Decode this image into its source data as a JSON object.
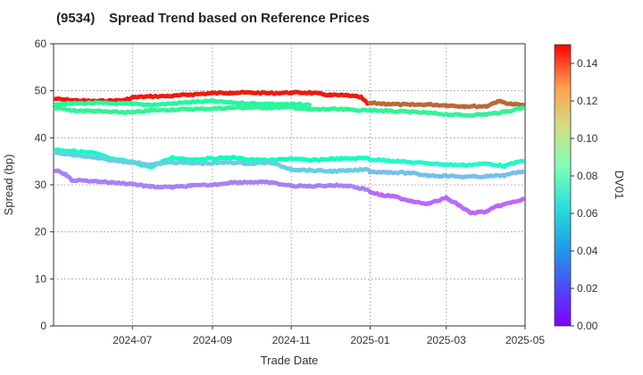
{
  "chart_data": {
    "type": "scatter",
    "title_code": "(9534)",
    "title": "Spread Trend based on Reference Prices",
    "xlabel": "Trade Date",
    "ylabel": "Spread (bp)",
    "colorbar_label": "DV01",
    "ylim": [
      0,
      60
    ],
    "yticks": [
      "0",
      "10",
      "20",
      "30",
      "40",
      "50",
      "60"
    ],
    "xlim": [
      "2024-05-01",
      "2025-05-01"
    ],
    "xticks": [
      {
        "date": "2024-07-01",
        "label": "2024-07"
      },
      {
        "date": "2024-09-01",
        "label": "2024-09"
      },
      {
        "date": "2024-11-01",
        "label": "2024-11"
      },
      {
        "date": "2025-01-01",
        "label": "2025-01"
      },
      {
        "date": "2025-03-01",
        "label": "2025-03"
      },
      {
        "date": "2025-05-01",
        "label": "2025-05"
      }
    ],
    "colorbar_range": [
      0,
      0.15
    ],
    "colorbar_ticks": [
      "0.00",
      "0.02",
      "0.04",
      "0.06",
      "0.08",
      "0.10",
      "0.12",
      "0.14"
    ],
    "colormap": "rainbow",
    "grid": true,
    "series": [
      {
        "dv01": 0.145,
        "x": [
          "2024-05-01",
          "2024-05-15",
          "2024-06-01",
          "2024-06-15",
          "2024-06-25",
          "2024-07-01",
          "2024-07-15",
          "2024-08-01",
          "2024-08-15",
          "2024-09-01",
          "2024-09-15",
          "2024-10-01",
          "2024-10-15",
          "2024-11-01",
          "2024-11-15",
          "2024-12-01",
          "2024-12-15",
          "2024-12-25",
          "2024-12-30"
        ],
        "y": [
          48.3,
          48.0,
          47.8,
          47.9,
          48.0,
          48.6,
          48.8,
          48.9,
          49.2,
          49.5,
          49.6,
          49.6,
          49.5,
          49.6,
          49.6,
          49.1,
          49.0,
          48.6,
          47.3
        ]
      },
      {
        "dv01": 0.13,
        "x": [
          "2025-01-01",
          "2025-01-15",
          "2025-02-01",
          "2025-02-15",
          "2025-03-01",
          "2025-03-15",
          "2025-04-01",
          "2025-04-10",
          "2025-04-20",
          "2025-05-01"
        ],
        "y": [
          47.4,
          47.2,
          47.0,
          47.1,
          46.9,
          46.7,
          46.7,
          47.8,
          47.2,
          46.9
        ]
      },
      {
        "dv01": 0.09,
        "x": [
          "2024-05-01",
          "2024-05-15",
          "2024-06-01",
          "2024-06-15",
          "2024-07-01",
          "2024-07-15",
          "2024-08-01",
          "2024-08-15",
          "2024-09-01",
          "2024-09-15",
          "2024-10-01",
          "2024-10-15",
          "2024-11-01",
          "2024-11-15",
          "2024-12-01",
          "2024-12-15",
          "2024-12-30"
        ],
        "y": [
          46.5,
          45.8,
          45.7,
          45.5,
          45.4,
          45.8,
          46.0,
          46.1,
          46.2,
          46.4,
          46.4,
          46.4,
          46.5,
          46.0,
          46.1,
          46.0,
          45.8
        ]
      },
      {
        "dv01": 0.085,
        "x": [
          "2024-05-01",
          "2024-06-01",
          "2024-07-01",
          "2024-07-15",
          "2024-08-01",
          "2024-08-15",
          "2024-09-01",
          "2024-09-15",
          "2024-10-01",
          "2024-10-15",
          "2024-11-01",
          "2024-11-15"
        ],
        "y": [
          47.2,
          47.4,
          47.2,
          47.0,
          47.3,
          47.6,
          47.8,
          47.5,
          47.3,
          47.2,
          47.1,
          47.0
        ]
      },
      {
        "dv01": 0.09,
        "x": [
          "2025-01-01",
          "2025-01-15",
          "2025-02-01",
          "2025-02-15",
          "2025-03-01",
          "2025-03-15",
          "2025-04-01",
          "2025-04-15",
          "2025-05-01"
        ],
        "y": [
          45.9,
          45.7,
          45.5,
          45.3,
          45.0,
          44.8,
          45.0,
          45.5,
          46.5
        ]
      },
      {
        "dv01": 0.07,
        "x": [
          "2024-05-01",
          "2024-05-15",
          "2024-06-01",
          "2024-06-15",
          "2024-07-01",
          "2024-07-15",
          "2024-08-01",
          "2024-08-15",
          "2024-09-01",
          "2024-09-15",
          "2024-10-01",
          "2024-10-15",
          "2024-11-01",
          "2024-11-15",
          "2024-12-01",
          "2024-12-15",
          "2024-12-30"
        ],
        "y": [
          37.5,
          37.2,
          36.8,
          35.5,
          34.8,
          33.8,
          35.8,
          35.4,
          35.6,
          35.8,
          35.4,
          35.2,
          35.6,
          35.2,
          35.5,
          35.6,
          35.7
        ]
      },
      {
        "dv01": 0.065,
        "x": [
          "2025-01-01",
          "2025-01-15",
          "2025-02-01",
          "2025-02-15",
          "2025-03-01",
          "2025-03-15",
          "2025-04-01",
          "2025-04-15",
          "2025-05-01"
        ],
        "y": [
          35.4,
          35.2,
          34.8,
          34.6,
          34.3,
          34.2,
          34.5,
          34.0,
          35.3
        ]
      },
      {
        "dv01": 0.045,
        "x": [
          "2024-05-01",
          "2024-05-15",
          "2024-06-01",
          "2024-06-15",
          "2024-07-01",
          "2024-07-15",
          "2024-08-01",
          "2024-08-15",
          "2024-09-01",
          "2024-09-15",
          "2024-10-01",
          "2024-10-15",
          "2024-11-01",
          "2024-11-15",
          "2024-12-01",
          "2024-12-15",
          "2024-12-30"
        ],
        "y": [
          36.8,
          36.4,
          35.8,
          35.2,
          34.8,
          34.3,
          34.8,
          34.6,
          34.6,
          34.8,
          34.5,
          34.8,
          33.3,
          33.1,
          32.9,
          33.0,
          33.3
        ]
      },
      {
        "dv01": 0.04,
        "x": [
          "2025-01-01",
          "2025-01-15",
          "2025-02-01",
          "2025-02-15",
          "2025-03-01",
          "2025-03-15",
          "2025-04-01",
          "2025-04-15",
          "2025-05-01"
        ],
        "y": [
          32.8,
          32.7,
          32.5,
          32.0,
          31.9,
          31.7,
          31.8,
          32.0,
          33.0
        ]
      },
      {
        "dv01": 0.025,
        "x": [
          "2024-05-01",
          "2024-05-10",
          "2024-05-15",
          "2024-06-01",
          "2024-06-15",
          "2024-07-01",
          "2024-07-15",
          "2024-08-01",
          "2024-08-15",
          "2024-09-01",
          "2024-09-15",
          "2024-10-01",
          "2024-10-15",
          "2024-11-01",
          "2024-11-15",
          "2024-12-01",
          "2024-12-15",
          "2024-12-30"
        ],
        "y": [
          33.3,
          32.3,
          31.0,
          30.8,
          30.5,
          30.2,
          29.6,
          29.5,
          29.8,
          30.0,
          30.5,
          30.6,
          30.5,
          29.8,
          29.7,
          29.9,
          29.8,
          29.0
        ]
      },
      {
        "dv01": 0.02,
        "x": [
          "2025-01-01",
          "2025-01-10",
          "2025-01-20",
          "2025-02-01",
          "2025-02-15",
          "2025-03-01",
          "2025-03-10",
          "2025-03-20",
          "2025-04-01",
          "2025-04-10",
          "2025-04-20",
          "2025-05-01"
        ],
        "y": [
          28.5,
          27.8,
          27.5,
          26.6,
          26.0,
          27.2,
          25.8,
          24.0,
          24.3,
          25.5,
          26.2,
          27.0
        ]
      }
    ]
  }
}
